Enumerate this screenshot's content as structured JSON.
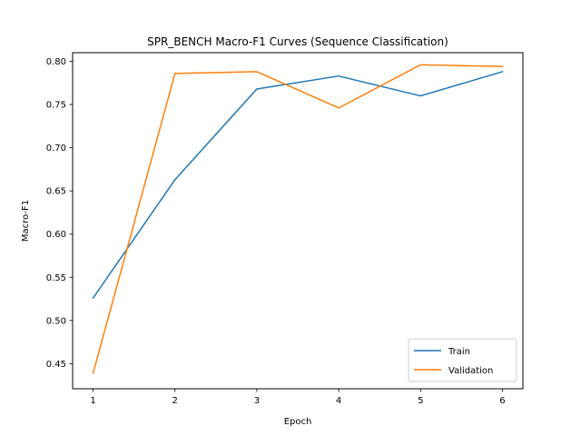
{
  "chart_data": {
    "type": "line",
    "title": "SPR_BENCH Macro-F1 Curves (Sequence Classification)",
    "xlabel": "Epoch",
    "ylabel": "Macro-F1",
    "x": [
      1,
      2,
      3,
      4,
      5,
      6
    ],
    "x_ticks": [
      "1",
      "2",
      "3",
      "4",
      "5",
      "6"
    ],
    "y_ticks": [
      "0.45",
      "0.50",
      "0.55",
      "0.60",
      "0.65",
      "0.70",
      "0.75",
      "0.80"
    ],
    "xlim": [
      0.75,
      6.25
    ],
    "ylim": [
      0.421,
      0.81
    ],
    "grid": false,
    "legend_position": "lower-right",
    "series": [
      {
        "name": "Train",
        "color": "#1f77b4",
        "values": [
          0.526,
          0.663,
          0.768,
          0.783,
          0.76,
          0.788
        ]
      },
      {
        "name": "Validation",
        "color": "#ff7f0e",
        "values": [
          0.439,
          0.786,
          0.788,
          0.746,
          0.796,
          0.794
        ]
      }
    ]
  }
}
